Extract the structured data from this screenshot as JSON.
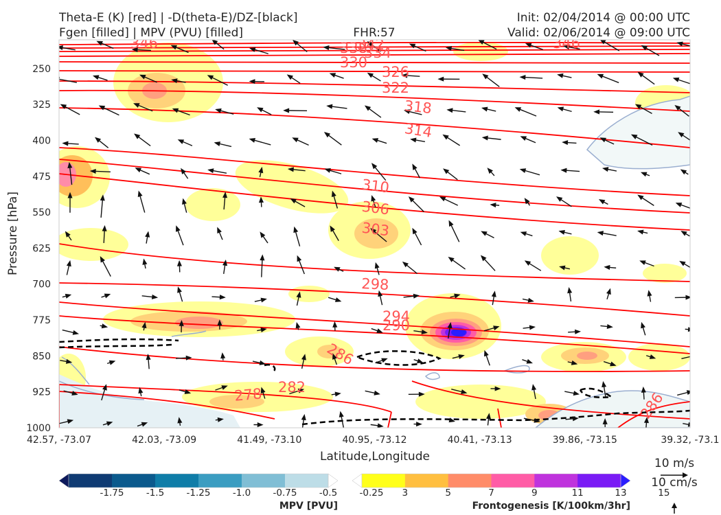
{
  "title": {
    "left_line1": "Theta-E (K) [red] | -D(theta-E)/DZ-[black]",
    "left_line2": "Fgen [filled] | MPV (PVU) [filled]",
    "center": "FHR:57",
    "right_line1": "Init: 02/04/2014 @ 00:00 UTC",
    "right_line2": "Valid: 02/06/2014 @ 09:00 UTC"
  },
  "colors": {
    "theta_e": "#ff0000",
    "theta_label": "#ff5555",
    "neg_dthetae_dz": "#000000",
    "mpv_contour": "#9aaed0",
    "vector": "#111111"
  },
  "chart_data": {
    "type": "cross-section",
    "xlabel": "Latitude,Longitude",
    "ylabel": "Pressure [hPa]",
    "x_ticks": [
      "42.57, -73.07",
      "42.03, -73.09",
      "41.49, -73.10",
      "40.95, -73.12",
      "40.41, -73.13",
      "39.86, -73.15",
      "39.32, -73.1"
    ],
    "y_ticks": [
      250,
      325,
      400,
      475,
      550,
      625,
      700,
      775,
      850,
      925,
      1000
    ],
    "ylim": [
      1000,
      190
    ],
    "theta_e_labels": [
      "346",
      "338",
      "342",
      "334",
      "330",
      "326",
      "322",
      "318",
      "314",
      "310",
      "306",
      "303",
      "298",
      "294",
      "290",
      "286",
      "282",
      "278",
      "346",
      "286"
    ],
    "colorbars": [
      {
        "name": "MPV [PVU]",
        "ticks": [
          "-1.75",
          "-1.5",
          "-1.25",
          "-1.0",
          "-0.75",
          "-0.5",
          "-0.25"
        ],
        "colors": [
          "#0d1a5c",
          "#0f3b73",
          "#0b5a8d",
          "#0f7da8",
          "#3b9dc1",
          "#80bed5",
          "#bddde7",
          "#ffffff"
        ]
      },
      {
        "name": "Frontogenesis [K/100km/3hr]",
        "ticks": [
          "3",
          "5",
          "7",
          "9",
          "11",
          "13",
          "15"
        ],
        "colors": [
          "#ffffff",
          "#ffff1a",
          "#ffbf40",
          "#ff8c69",
          "#ff5ca6",
          "#bf33dd",
          "#7a1bf5",
          "#2b1dff"
        ]
      }
    ],
    "wind_reference": [
      "10 m/s",
      "10 cm/s"
    ]
  }
}
